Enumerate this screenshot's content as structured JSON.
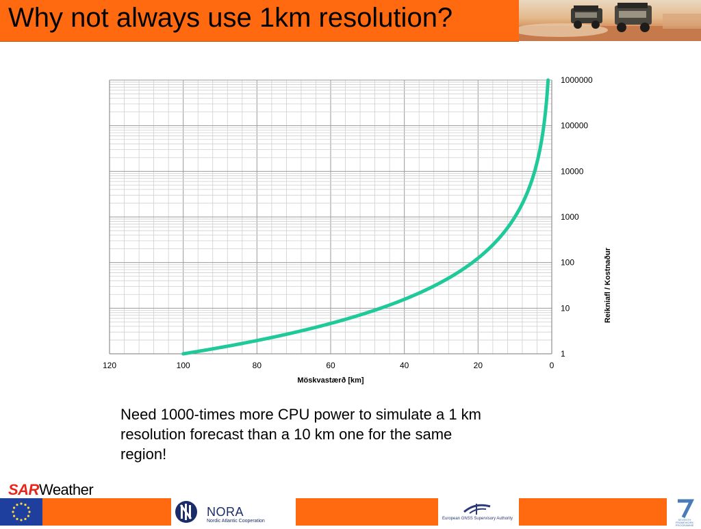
{
  "header": {
    "title": "Why not always use 1km resolution?"
  },
  "chart_data": {
    "type": "line",
    "xlabel": "Möskvastærð [km]",
    "ylabel": "Reikniafl / Kostnaður",
    "x_ticks": [
      "120",
      "100",
      "80",
      "60",
      "40",
      "20",
      "0"
    ],
    "y_ticks": [
      "1",
      "10",
      "100",
      "1000",
      "10000",
      "100000",
      "1000000"
    ],
    "xlim": [
      120,
      0
    ],
    "ylim": [
      1,
      1000000
    ],
    "y_scale": "log",
    "x_reversed": true,
    "grid": true,
    "series_color": "#1fc99a",
    "series": [
      {
        "x": [
          100,
          90,
          80,
          70,
          60,
          50,
          40,
          30,
          20,
          15,
          10,
          7,
          5,
          4,
          3,
          2,
          1
        ],
        "values": [
          1,
          1.37,
          1.95,
          2.92,
          4.63,
          8,
          15.6,
          37,
          125,
          296,
          1000,
          2915,
          8000,
          15625,
          37037,
          125000,
          1000000
        ]
      }
    ]
  },
  "caption": "Need 1000-times more CPU power to simulate a 1 km\nresolution forecast than a 10 km one for the same\nregion!",
  "footer": {
    "brand_sar": "SAR",
    "brand_weather": "Weather",
    "nora_name": "NORA",
    "nora_subtitle": "Nordic Atlantic Cooperation",
    "gnss_name": "European GNSS Supervisory Authority",
    "fp7_name": "SEVENTH FRAMEWORK PROGRAMME",
    "icons": [
      "eu-flag-icon",
      "nora-logo-icon",
      "gnss-logo-icon",
      "fp7-logo-icon"
    ]
  }
}
